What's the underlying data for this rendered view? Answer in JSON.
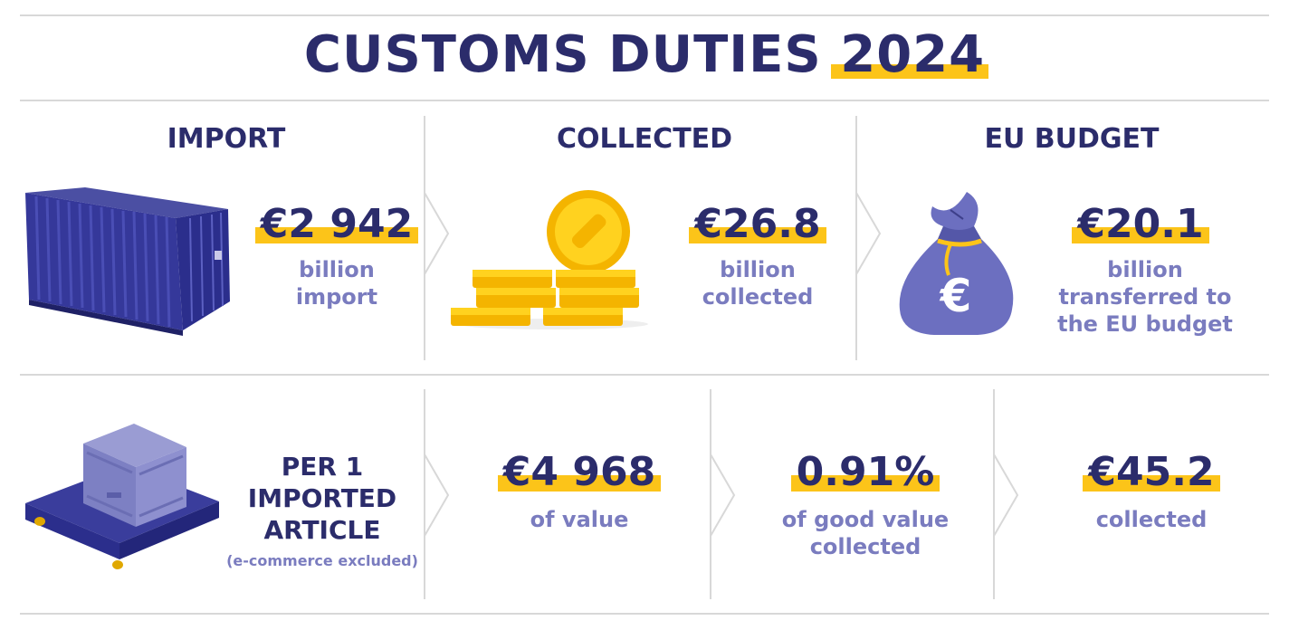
{
  "title": {
    "main": "CUSTOMS DUTIES",
    "year": "2024"
  },
  "top": {
    "import": {
      "heading": "IMPORT",
      "value": "€2 942",
      "line1": "billion",
      "line2": "import"
    },
    "collected": {
      "heading": "COLLECTED",
      "value": "€26.8",
      "line1": "billion",
      "line2": "collected"
    },
    "eu_budget": {
      "heading": "EU BUDGET",
      "value": "€20.1",
      "line1": "billion",
      "line2": "transferred to",
      "line3": "the EU budget"
    }
  },
  "bottom": {
    "per_article": {
      "line1": "PER 1",
      "line2": "IMPORTED",
      "line3": "ARTICLE",
      "note": "(e-commerce excluded)"
    },
    "value": {
      "value": "€4 968",
      "caption": "of value"
    },
    "rate": {
      "value": "0.91%",
      "line1": "of good value",
      "line2": "collected"
    },
    "collected": {
      "value": "€45.2",
      "caption": "collected"
    }
  },
  "colors": {
    "navy": "#2b2c6b",
    "lavender": "#7a7cbf",
    "yellow": "#fcc419",
    "divider": "#d8d8d8"
  },
  "icons": [
    "shipping-container-icon",
    "gold-coins-icon",
    "euro-money-bag-icon",
    "crate-on-pallet-icon",
    "chevron-right-icon"
  ]
}
